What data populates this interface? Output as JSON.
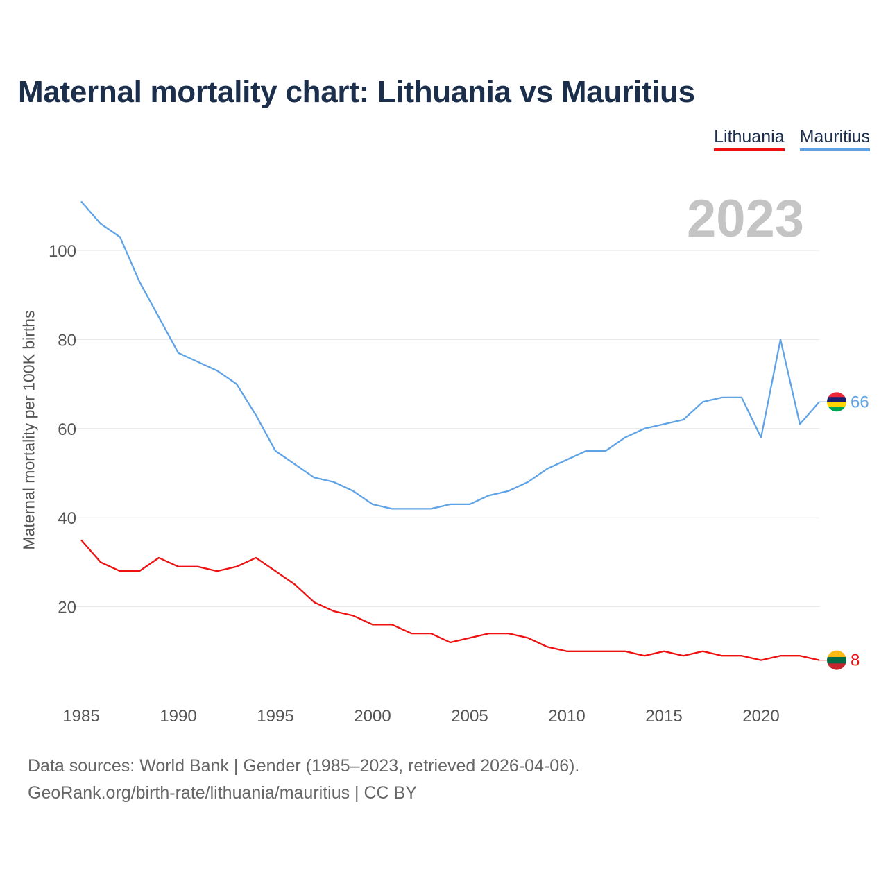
{
  "title": "Maternal mortality chart: Lithuania vs Mauritius",
  "legend": [
    {
      "label": "Lithuania",
      "color": "#ee1111"
    },
    {
      "label": "Mauritius",
      "color": "#5fa3e6"
    }
  ],
  "year_label": "2023",
  "footer": {
    "line1": "Data sources: World Bank | Gender (1985–2023, retrieved 2026-04-06).",
    "line2": "GeoRank.org/birth-rate/lithuania/mauritius | CC BY"
  },
  "chart_data": {
    "type": "line",
    "title": "Maternal mortality chart: Lithuania vs Mauritius",
    "xlabel": "",
    "ylabel": "Maternal mortality per 100K births",
    "xlim": [
      1985,
      2023
    ],
    "ylim": [
      0,
      115
    ],
    "x_ticks": [
      1985,
      1990,
      1995,
      2000,
      2005,
      2010,
      2015,
      2020
    ],
    "y_ticks": [
      20,
      40,
      60,
      80,
      100
    ],
    "grid": true,
    "legend_position": "top-right",
    "x": [
      1985,
      1986,
      1987,
      1988,
      1989,
      1990,
      1991,
      1992,
      1993,
      1994,
      1995,
      1996,
      1997,
      1998,
      1999,
      2000,
      2001,
      2002,
      2003,
      2004,
      2005,
      2006,
      2007,
      2008,
      2009,
      2010,
      2011,
      2012,
      2013,
      2014,
      2015,
      2016,
      2017,
      2018,
      2019,
      2020,
      2021,
      2022,
      2023
    ],
    "series": [
      {
        "name": "Lithuania",
        "color": "#ee1111",
        "end_label": "8",
        "flag_colors": [
          "#fdb913",
          "#006a44",
          "#c1272d"
        ],
        "values": [
          35,
          30,
          28,
          28,
          31,
          29,
          29,
          28,
          29,
          31,
          28,
          25,
          21,
          19,
          18,
          16,
          16,
          14,
          14,
          12,
          13,
          14,
          14,
          13,
          11,
          10,
          10,
          10,
          10,
          9,
          10,
          9,
          10,
          9,
          9,
          8,
          9,
          9,
          8
        ]
      },
      {
        "name": "Mauritius",
        "color": "#5fa3e6",
        "end_label": "66",
        "flag_colors": [
          "#ea2839",
          "#1a206d",
          "#ffd500",
          "#00a551"
        ],
        "values": [
          111,
          106,
          103,
          93,
          85,
          77,
          75,
          73,
          70,
          63,
          55,
          52,
          49,
          48,
          46,
          43,
          42,
          42,
          42,
          43,
          43,
          45,
          46,
          48,
          51,
          53,
          55,
          55,
          58,
          60,
          61,
          62,
          66,
          67,
          67,
          58,
          80,
          61,
          66
        ]
      }
    ]
  }
}
